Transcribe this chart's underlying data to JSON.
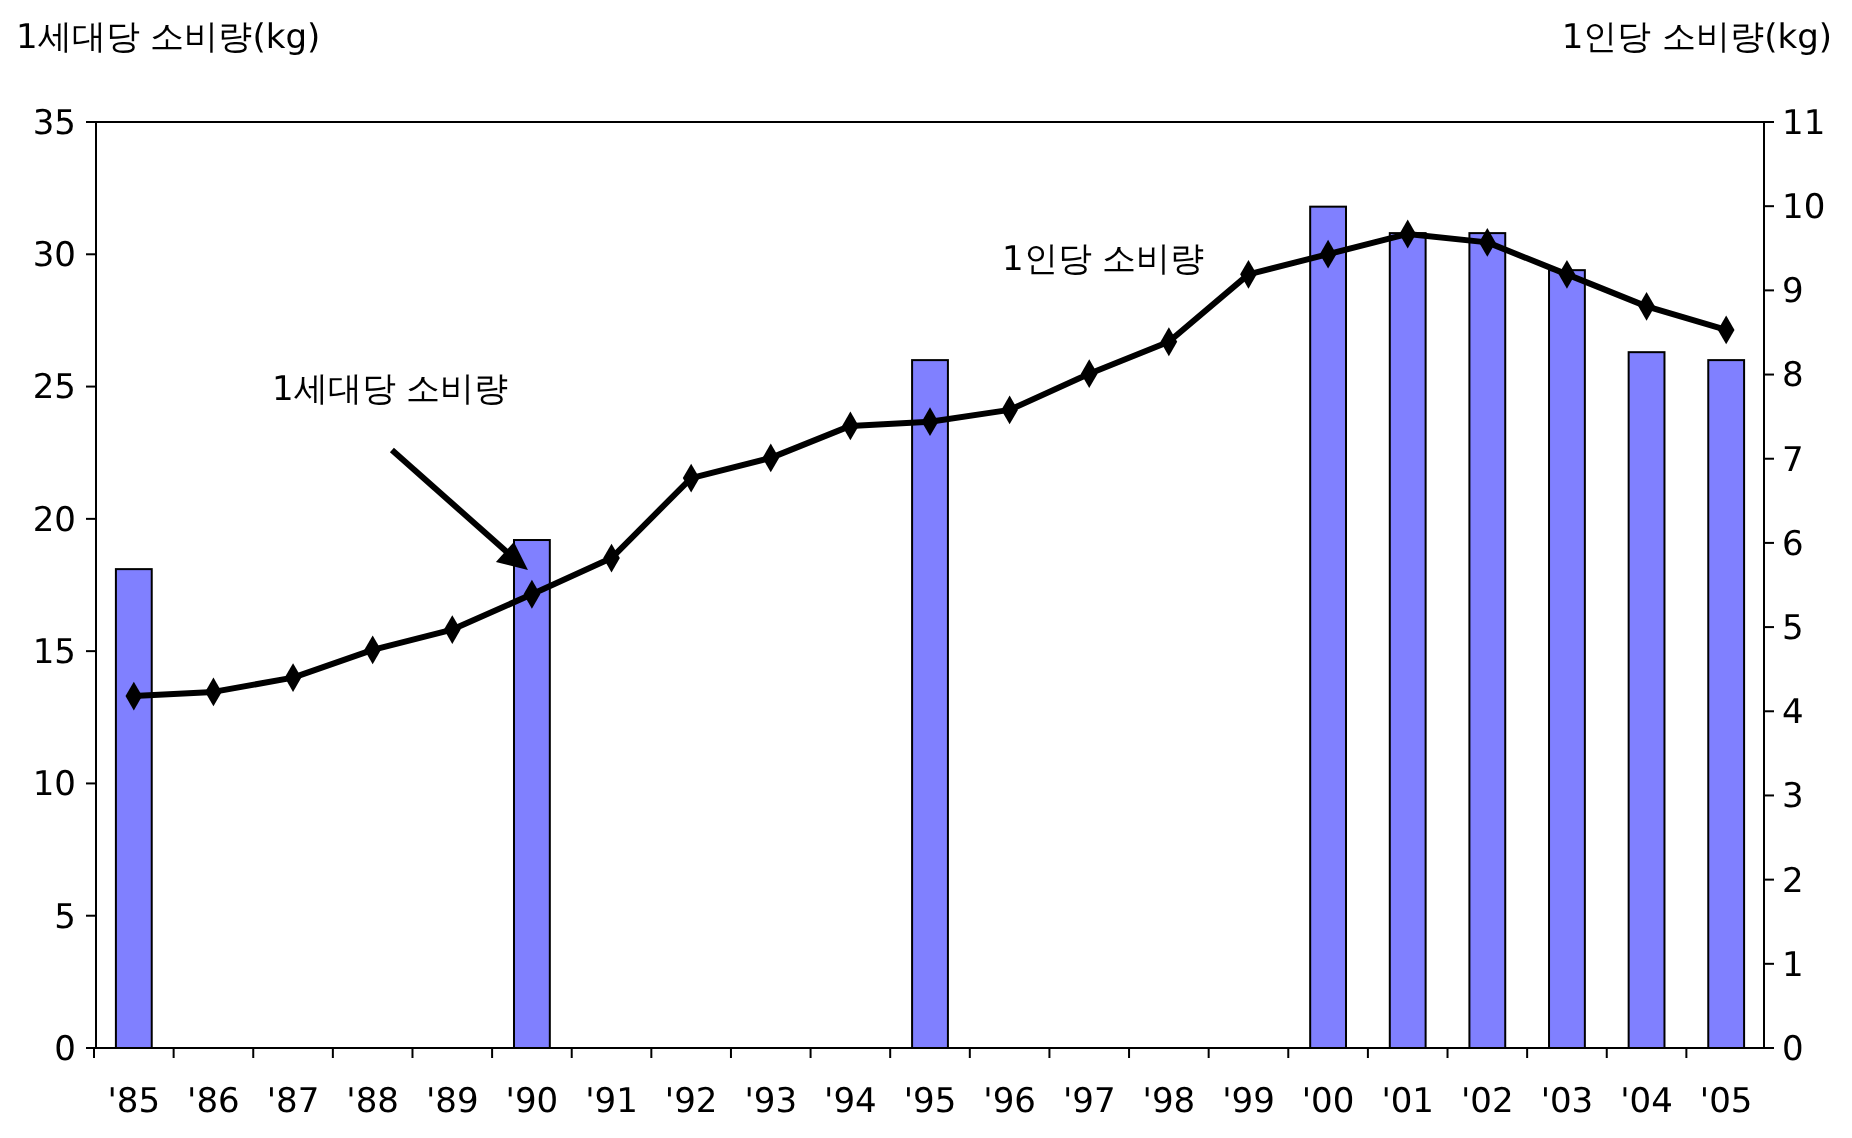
{
  "chart_data": {
    "type": "bar",
    "ylabel": "1세대당 소비량(kg)",
    "y2label": "1인당 소비량(kg)",
    "categories": [
      "'85",
      "'86",
      "'87",
      "'88",
      "'89",
      "'90",
      "'91",
      "'92",
      "'93",
      "'94",
      "'95",
      "'96",
      "'97",
      "'98",
      "'99",
      "'00",
      "'01",
      "'02",
      "'03",
      "'04",
      "'05"
    ],
    "series": [
      {
        "name": "1세대당 소비량",
        "color": "#8080ff",
        "values": [
          18.1,
          null,
          null,
          null,
          null,
          19.2,
          null,
          null,
          null,
          null,
          26.0,
          null,
          null,
          null,
          null,
          31.8,
          30.8,
          30.8,
          29.4,
          26.3,
          26.0
        ]
      },
      {
        "name": "1인당 소비량",
        "type": "line",
        "axis": "y2",
        "color": "#000000",
        "values": [
          4.18,
          4.23,
          4.4,
          4.73,
          4.97,
          5.39,
          5.82,
          6.77,
          7.01,
          7.39,
          7.44,
          7.58,
          8.01,
          8.39,
          9.19,
          9.43,
          9.67,
          9.57,
          9.19,
          8.81,
          8.53
        ]
      }
    ],
    "ylim": [
      0,
      35
    ],
    "yticks": [
      0,
      5,
      10,
      15,
      20,
      25,
      30,
      35
    ],
    "y2lim": [
      0,
      11
    ],
    "y2ticks": [
      0,
      1,
      2,
      3,
      4,
      5,
      6,
      7,
      8,
      9,
      10,
      11
    ],
    "grid": false,
    "marker": "diamond",
    "line_style": "solid"
  }
}
